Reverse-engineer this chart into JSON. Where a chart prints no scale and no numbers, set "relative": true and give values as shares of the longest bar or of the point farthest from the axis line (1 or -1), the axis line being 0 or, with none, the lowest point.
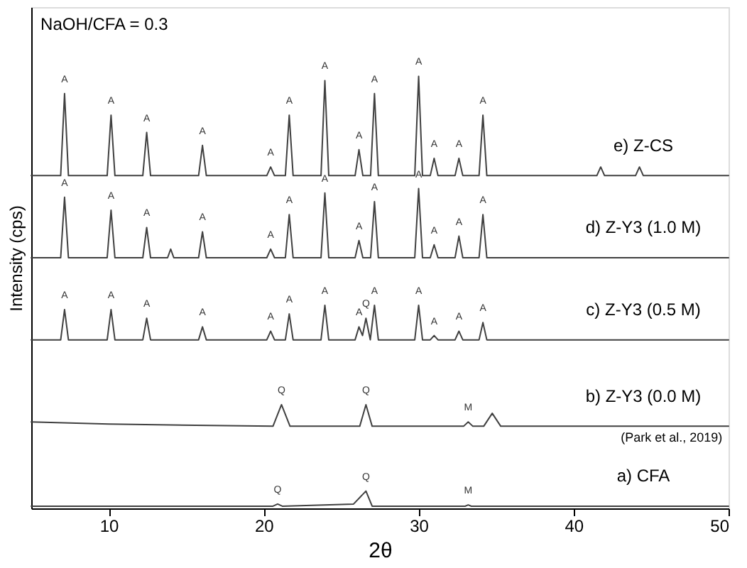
{
  "chart_data": {
    "type": "line",
    "relative": true,
    "xlabel": "2θ",
    "ylabel": "Intensity (cps)",
    "xlim": [
      5,
      50
    ],
    "xticks": [
      10,
      20,
      30,
      40,
      50
    ],
    "tick_labels": "x",
    "grid": false,
    "legend": false,
    "marker": "none",
    "line_style": "solid",
    "series": [
      {
        "name": "e) Z-CS",
        "color": "#404040",
        "x": [
          5,
          6.9,
          7.15,
          7.4,
          9.9,
          10.15,
          10.4,
          12.2,
          12.45,
          12.7,
          15.8,
          16.05,
          16.3,
          20.2,
          20.45,
          20.7,
          21.4,
          21.65,
          21.9,
          23.7,
          23.95,
          24.2,
          25.9,
          26.15,
          26.4,
          26.9,
          27.15,
          27.4,
          29.75,
          30,
          30.25,
          30.75,
          31,
          31.25,
          32.35,
          32.6,
          32.85,
          33.9,
          34.15,
          34.4,
          41.5,
          41.75,
          42,
          44,
          44.25,
          44.5,
          50
        ],
        "values": [
          0.77,
          0.77,
          0.96,
          0.77,
          0.77,
          0.91,
          0.77,
          0.77,
          0.87,
          0.77,
          0.77,
          0.84,
          0.77,
          0.77,
          0.79,
          0.77,
          0.77,
          0.91,
          0.77,
          0.77,
          0.99,
          0.77,
          0.77,
          0.83,
          0.77,
          0.77,
          0.96,
          0.77,
          0.77,
          1.0,
          0.77,
          0.77,
          0.81,
          0.77,
          0.77,
          0.81,
          0.77,
          0.77,
          0.91,
          0.77,
          0.77,
          0.79,
          0.77,
          0.77,
          0.79,
          0.77,
          0.77
        ]
      },
      {
        "name": "d) Z-Y3 (1.0 M)",
        "color": "#404040",
        "x": [
          5,
          6.9,
          7.15,
          7.4,
          9.9,
          10.15,
          10.4,
          12.2,
          12.45,
          12.7,
          13.8,
          14.0,
          14.2,
          15.8,
          16.05,
          16.3,
          20.2,
          20.45,
          20.7,
          21.4,
          21.65,
          21.9,
          23.7,
          23.95,
          24.2,
          25.9,
          26.15,
          26.4,
          26.9,
          27.15,
          27.4,
          29.75,
          30,
          30.25,
          30.75,
          31,
          31.25,
          32.35,
          32.6,
          32.85,
          33.9,
          34.15,
          34.4,
          50
        ],
        "values": [
          0.58,
          0.58,
          0.72,
          0.58,
          0.58,
          0.69,
          0.58,
          0.58,
          0.65,
          0.58,
          0.58,
          0.6,
          0.58,
          0.58,
          0.64,
          0.58,
          0.58,
          0.6,
          0.58,
          0.58,
          0.68,
          0.58,
          0.58,
          0.73,
          0.58,
          0.58,
          0.62,
          0.58,
          0.58,
          0.71,
          0.58,
          0.58,
          0.74,
          0.58,
          0.58,
          0.61,
          0.58,
          0.58,
          0.63,
          0.58,
          0.58,
          0.68,
          0.58,
          0.58
        ]
      },
      {
        "name": "c) Z-Y3 (0.5 M)",
        "color": "#404040",
        "x": [
          5,
          6.9,
          7.15,
          7.4,
          9.9,
          10.15,
          10.4,
          12.2,
          12.45,
          12.7,
          15.8,
          16.05,
          16.3,
          20.2,
          20.45,
          20.7,
          21.4,
          21.65,
          21.9,
          23.7,
          23.95,
          24.2,
          25.9,
          26.15,
          26.38,
          26.6,
          26.88,
          27.15,
          27.4,
          29.75,
          30,
          30.25,
          30.75,
          31,
          31.25,
          32.35,
          32.6,
          32.85,
          33.9,
          34.15,
          34.4,
          50
        ],
        "values": [
          0.39,
          0.39,
          0.46,
          0.39,
          0.39,
          0.46,
          0.39,
          0.39,
          0.44,
          0.39,
          0.39,
          0.42,
          0.39,
          0.39,
          0.41,
          0.39,
          0.39,
          0.45,
          0.39,
          0.39,
          0.47,
          0.39,
          0.39,
          0.42,
          0.4,
          0.44,
          0.39,
          0.47,
          0.39,
          0.39,
          0.47,
          0.39,
          0.39,
          0.4,
          0.39,
          0.39,
          0.41,
          0.39,
          0.39,
          0.43,
          0.39,
          0.39
        ]
      },
      {
        "name": "b) Z-Y3 (0.0 M)",
        "color": "#404040",
        "x": [
          5,
          10,
          20.6,
          21.15,
          21.7,
          26.2,
          26.6,
          27.0,
          32.9,
          33.2,
          33.5,
          34.2,
          34.75,
          35.3,
          50
        ],
        "values": [
          0.2,
          0.195,
          0.19,
          0.24,
          0.19,
          0.19,
          0.24,
          0.19,
          0.19,
          0.2,
          0.19,
          0.19,
          0.22,
          0.19,
          0.19
        ]
      },
      {
        "name": "a) CFA",
        "color": "#404040",
        "x": [
          5,
          20.6,
          20.9,
          21.2,
          25.8,
          26.6,
          27.0,
          33.0,
          33.2,
          33.4,
          50
        ],
        "values": [
          0.005,
          0.005,
          0.01,
          0.005,
          0.01,
          0.04,
          0.005,
          0.005,
          0.008,
          0.005,
          0.005
        ]
      }
    ],
    "annotations": [
      "NaOH/CFA = 0.3",
      "(Park et al., 2019)",
      {
        "text": "A",
        "x": 7.15,
        "y": 0.96
      },
      {
        "text": "A",
        "x": 10.15,
        "y": 0.91
      },
      {
        "text": "A",
        "x": 12.45,
        "y": 0.87
      },
      {
        "text": "A",
        "x": 16.05,
        "y": 0.84
      },
      {
        "text": "A",
        "x": 20.45,
        "y": 0.79
      },
      {
        "text": "A",
        "x": 21.65,
        "y": 0.91
      },
      {
        "text": "A",
        "x": 23.95,
        "y": 0.99
      },
      {
        "text": "A",
        "x": 26.15,
        "y": 0.83
      },
      {
        "text": "A",
        "x": 27.15,
        "y": 0.96
      },
      {
        "text": "A",
        "x": 30,
        "y": 1.0
      },
      {
        "text": "A",
        "x": 31,
        "y": 0.81
      },
      {
        "text": "A",
        "x": 32.6,
        "y": 0.81
      },
      {
        "text": "A",
        "x": 34.15,
        "y": 0.91
      },
      {
        "text": "A",
        "x": 7.15,
        "y": 0.72
      },
      {
        "text": "A",
        "x": 10.15,
        "y": 0.69
      },
      {
        "text": "A",
        "x": 12.45,
        "y": 0.65
      },
      {
        "text": "A",
        "x": 16.05,
        "y": 0.64
      },
      {
        "text": "A",
        "x": 20.45,
        "y": 0.6
      },
      {
        "text": "A",
        "x": 21.65,
        "y": 0.68
      },
      {
        "text": "A",
        "x": 23.95,
        "y": 0.73
      },
      {
        "text": "A",
        "x": 26.15,
        "y": 0.62
      },
      {
        "text": "A",
        "x": 27.15,
        "y": 0.71
      },
      {
        "text": "A",
        "x": 30,
        "y": 0.74
      },
      {
        "text": "A",
        "x": 31,
        "y": 0.61
      },
      {
        "text": "A",
        "x": 32.6,
        "y": 0.63
      },
      {
        "text": "A",
        "x": 34.15,
        "y": 0.68
      },
      {
        "text": "A",
        "x": 7.15,
        "y": 0.46
      },
      {
        "text": "A",
        "x": 10.15,
        "y": 0.46
      },
      {
        "text": "A",
        "x": 12.45,
        "y": 0.44
      },
      {
        "text": "A",
        "x": 16.05,
        "y": 0.42
      },
      {
        "text": "A",
        "x": 20.45,
        "y": 0.41
      },
      {
        "text": "A",
        "x": 21.65,
        "y": 0.45
      },
      {
        "text": "A",
        "x": 23.95,
        "y": 0.47
      },
      {
        "text": "A",
        "x": 26.15,
        "y": 0.42
      },
      {
        "text": "Q",
        "x": 26.6,
        "y": 0.44
      },
      {
        "text": "A",
        "x": 27.15,
        "y": 0.47
      },
      {
        "text": "A",
        "x": 30,
        "y": 0.47
      },
      {
        "text": "A",
        "x": 31,
        "y": 0.4
      },
      {
        "text": "A",
        "x": 32.6,
        "y": 0.41
      },
      {
        "text": "A",
        "x": 34.15,
        "y": 0.43
      },
      {
        "text": "Q",
        "x": 21.15,
        "y": 0.24
      },
      {
        "text": "Q",
        "x": 26.6,
        "y": 0.24
      },
      {
        "text": "M",
        "x": 33.2,
        "y": 0.2
      },
      {
        "text": "Q",
        "x": 20.9,
        "y": 0.01
      },
      {
        "text": "Q",
        "x": 26.6,
        "y": 0.04
      },
      {
        "text": "M",
        "x": 33.2,
        "y": 0.008
      }
    ]
  }
}
